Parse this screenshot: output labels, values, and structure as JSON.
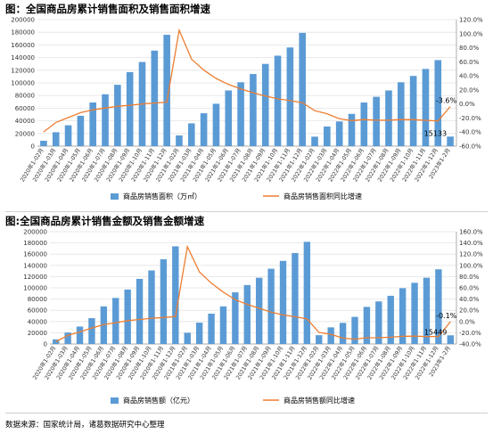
{
  "source_note": "数据来源：国家统计局，诸葛数据研究中心整理",
  "chart_data": [
    {
      "type": "bar",
      "title": "图：全国商品房累计销售面积及销售面积增速",
      "categories": [
        "2020年1-02月",
        "2020年1-03月",
        "2020年1-04月",
        "2020年1-05月",
        "2020年1-06月",
        "2020年1-07月",
        "2020年1-08月",
        "2020年1-09月",
        "2020年1-10月",
        "2020年1-11月",
        "2020年1-12月",
        "2021年1-02月",
        "2021年1-03月",
        "2021年1-04月",
        "2021年1-05月",
        "2021年1-06月",
        "2021年1-07月",
        "2021年1-08月",
        "2021年1-09月",
        "2021年1-10月",
        "2021年1-11月",
        "2021年1-12月",
        "2022年1-02月",
        "2022年1-03月",
        "2022年1-04月",
        "2022年1-05月",
        "2022年1-06月",
        "2022年1-07月",
        "2022年1-08月",
        "2022年1-09月",
        "2022年1-10月",
        "2022年1-11月",
        "2022年1-12月",
        "2023年1-2月"
      ],
      "series": [
        {
          "name": "商品房销售面积（万㎡）",
          "kind": "bar",
          "axis": "left",
          "color": "#5b9bd5",
          "values": [
            8500,
            22000,
            33000,
            48000,
            69000,
            82000,
            97000,
            117000,
            133000,
            151000,
            176000,
            17000,
            36000,
            52000,
            67000,
            88000,
            101000,
            114000,
            130000,
            143000,
            156000,
            179000,
            15000,
            31000,
            39000,
            51000,
            69000,
            78000,
            88000,
            101000,
            111000,
            122000,
            136000,
            15133
          ]
        },
        {
          "name": "商品房销售面积同比增速",
          "kind": "line",
          "axis": "right",
          "color": "#ed7d31",
          "values": [
            -39.9,
            -26.3,
            -19.3,
            -12.3,
            -8.4,
            -5.8,
            -3.3,
            -1.8,
            0.0,
            1.3,
            2.6,
            104.9,
            63.8,
            48.1,
            36.3,
            27.7,
            21.5,
            15.9,
            11.3,
            7.3,
            4.8,
            1.9,
            -9.6,
            -13.8,
            -20.9,
            -23.6,
            -22.2,
            -23.1,
            -23.0,
            -22.2,
            -22.3,
            -23.3,
            -24.3,
            -3.6
          ]
        }
      ],
      "ylim_left": [
        0,
        200000
      ],
      "left_ticks": [
        "0",
        "20000",
        "40000",
        "60000",
        "80000",
        "100000",
        "120000",
        "140000",
        "160000",
        "180000",
        "200000"
      ],
      "ylim_right": [
        -60,
        120
      ],
      "right_ticks": [
        "-60.0%",
        "-40.0%",
        "-20.0%",
        "0.0%",
        "20.0%",
        "40.0%",
        "60.0%",
        "80.0%",
        "100.0%",
        "120.0%"
      ],
      "annotations": [
        {
          "text": "-3.6%",
          "series": 1,
          "index": 33
        },
        {
          "text": "15133",
          "series": 0,
          "index": 33
        }
      ],
      "legend_position": "bottom"
    },
    {
      "type": "bar",
      "title": "图:全国商品房累计销售金额及销售金额增速",
      "categories": [
        "2020年1-02月",
        "2020年1-03月",
        "2020年1-04月",
        "2020年1-05月",
        "2020年1-06月",
        "2020年1-07月",
        "2020年1-08月",
        "2020年1-09月",
        "2020年1-10月",
        "2020年1-11月",
        "2020年1-12月",
        "2021年1-02月",
        "2021年1-03月",
        "2021年1-04月",
        "2021年1-05月",
        "2021年1-06月",
        "2021年1-07月",
        "2021年1-08月",
        "2021年1-09月",
        "2021年1-10月",
        "2021年1-11月",
        "2021年1-12月",
        "2022年1-02月",
        "2022年1-03月",
        "2022年1-04月",
        "2022年1-05月",
        "2022年1-06月",
        "2022年1-07月",
        "2022年1-08月",
        "2022年1-09月",
        "2022年1-10月",
        "2022年1-11月",
        "2022年1-12月",
        "2023年1-2月"
      ],
      "series": [
        {
          "name": "商品房销售额（亿元）",
          "kind": "bar",
          "axis": "left",
          "color": "#5b9bd5",
          "values": [
            8200,
            20400,
            31000,
            46000,
            67000,
            82000,
            97000,
            116000,
            131000,
            151000,
            174000,
            20000,
            38000,
            54000,
            67000,
            92000,
            105000,
            118000,
            134000,
            148000,
            162000,
            182000,
            15700,
            29600,
            37600,
            48300,
            66100,
            75800,
            85900,
            99400,
            109000,
            118000,
            133000,
            15449
          ]
        },
        {
          "name": "商品房销售额同比增速",
          "kind": "line",
          "axis": "right",
          "color": "#ed7d31",
          "values": [
            -35.9,
            -24.7,
            -18.6,
            -11.6,
            -5.4,
            -2.1,
            1.6,
            3.7,
            5.8,
            7.2,
            8.7,
            133.4,
            88.5,
            68.3,
            52.4,
            38.9,
            30.7,
            23.7,
            16.6,
            11.8,
            8.5,
            4.8,
            -19.3,
            -22.7,
            -29.5,
            -31.5,
            -28.9,
            -28.8,
            -27.9,
            -26.3,
            -26.1,
            -26.6,
            -26.7,
            -0.1
          ]
        }
      ],
      "ylim_left": [
        0,
        200000
      ],
      "left_ticks": [
        "0",
        "20000",
        "40000",
        "60000",
        "80000",
        "100000",
        "120000",
        "140000",
        "160000",
        "180000",
        "200000"
      ],
      "ylim_right": [
        -40,
        160
      ],
      "right_ticks": [
        "-40.0%",
        "-20.0%",
        "0.0%",
        "20.0%",
        "40.0%",
        "60.0%",
        "80.0%",
        "100.0%",
        "120.0%",
        "140.0%",
        "160.0%"
      ],
      "annotations": [
        {
          "text": "-0.1%",
          "series": 1,
          "index": 33
        },
        {
          "text": "15449",
          "series": 0,
          "index": 33
        }
      ],
      "legend_position": "bottom"
    }
  ]
}
